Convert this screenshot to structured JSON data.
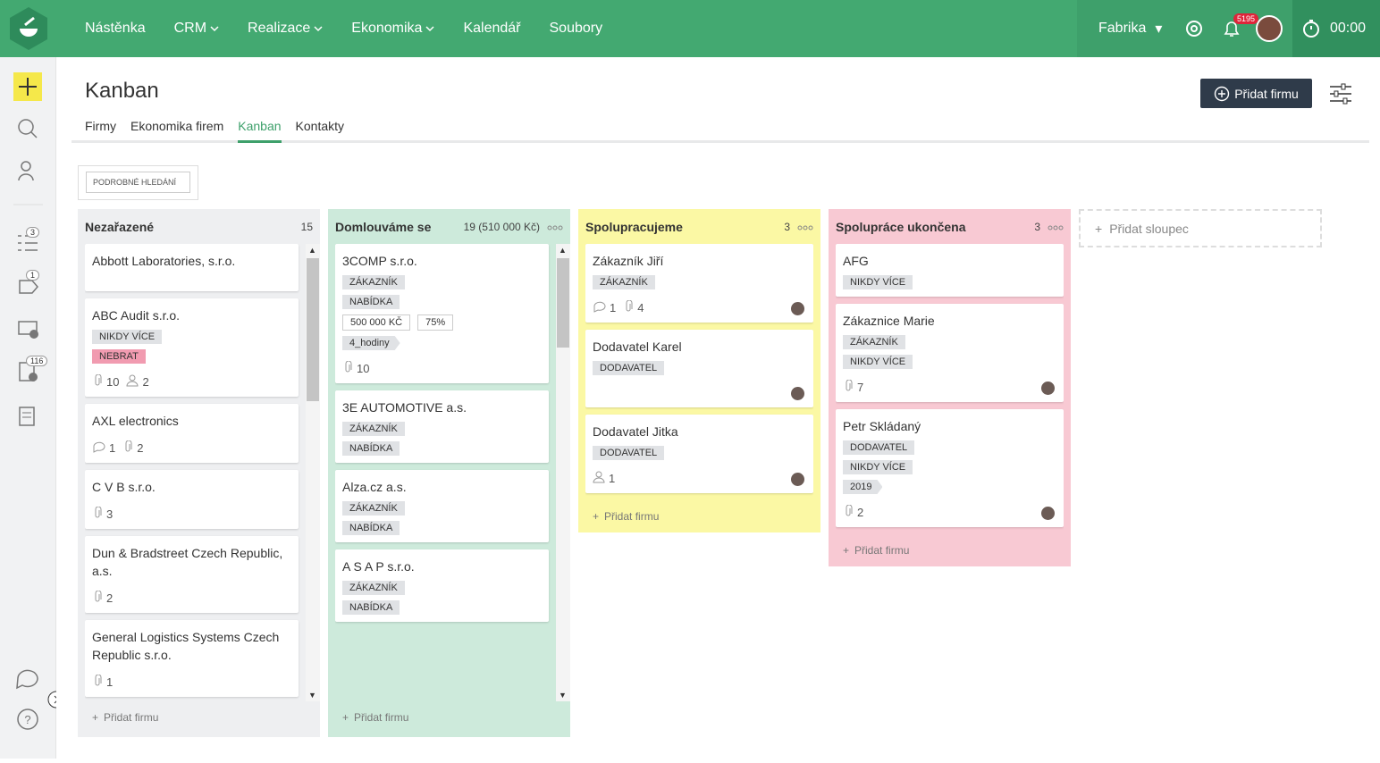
{
  "nav": {
    "items": [
      {
        "label": "Nástěnka",
        "dropdown": false
      },
      {
        "label": "CRM",
        "dropdown": true
      },
      {
        "label": "Realizace",
        "dropdown": true
      },
      {
        "label": "Ekonomika",
        "dropdown": true
      },
      {
        "label": "Kalendář",
        "dropdown": false
      },
      {
        "label": "Soubory",
        "dropdown": false
      }
    ],
    "workspace": "Fabrika",
    "notifications": "5195",
    "timer": "00:00"
  },
  "sidebar": {
    "tasks_badge": "3",
    "messages_badge": "1",
    "documents_badge": "116"
  },
  "page": {
    "title": "Kanban",
    "add_button": "Přidat firmu",
    "tabs": [
      "Firmy",
      "Ekonomika firem",
      "Kanban",
      "Kontakty"
    ],
    "active_tab": 2,
    "search_button": "PODROBNÉ HLEDÁNÍ"
  },
  "board": {
    "add_column": "Přidat sloupec",
    "columns": [
      {
        "title": "Nezařazené",
        "count": "15",
        "color": "#eeeff1",
        "scrollable": true,
        "add_card": "Přidat firmu",
        "cards": [
          {
            "title": "Abbott Laboratories, s.r.o."
          },
          {
            "title": "ABC Audit s.r.o.",
            "tags": [
              "NIKDY VÍCE"
            ],
            "warning_tags": [
              "NEBRAT"
            ],
            "attachments": 10,
            "persons": 2
          },
          {
            "title": "AXL electronics",
            "comments": 1,
            "attachments": 2
          },
          {
            "title": "C V B s.r.o.",
            "attachments": 3
          },
          {
            "title": "Dun & Bradstreet Czech Republic, a.s.",
            "attachments": 2
          },
          {
            "title": "General Logistics Systems Czech Republic s.r.o.",
            "attachments": 1
          }
        ]
      },
      {
        "title": "Domlouváme se",
        "count": "19 (510 000 Kč)",
        "color": "#cdeadb",
        "scrollable": true,
        "add_card": "Přidat firmu",
        "cards": [
          {
            "title": "3COMP s.r.o.",
            "tags": [
              "ZÁKAZNÍK",
              "NABÍDKA"
            ],
            "values": [
              "500 000 KČ",
              "75%"
            ],
            "arrow_tags": [
              "4_hodiny"
            ],
            "attachments": 10
          },
          {
            "title": "3E AUTOMOTIVE a.s.",
            "tags": [
              "ZÁKAZNÍK",
              "NABÍDKA"
            ]
          },
          {
            "title": "Alza.cz a.s.",
            "tags": [
              "ZÁKAZNÍK",
              "NABÍDKA"
            ]
          },
          {
            "title": "A S A P s.r.o.",
            "tags": [
              "ZÁKAZNÍK",
              "NABÍDKA"
            ]
          }
        ]
      },
      {
        "title": "Spolupracujeme",
        "count": "3",
        "color": "#fbf8a4",
        "scrollable": false,
        "add_card": "Přidat firmu",
        "cards": [
          {
            "title": "Zákazník Jiří",
            "tags": [
              "ZÁKAZNÍK"
            ],
            "comments": 1,
            "attachments": 4,
            "avatar": true
          },
          {
            "title": "Dodavatel Karel",
            "tags": [
              "DODAVATEL"
            ],
            "avatar": true
          },
          {
            "title": "Dodavatel Jitka",
            "tags": [
              "DODAVATEL"
            ],
            "persons": 1,
            "avatar": true
          }
        ]
      },
      {
        "title": "Spolupráce ukončena",
        "count": "3",
        "color": "#f8c9d3",
        "scrollable": false,
        "add_card": "Přidat firmu",
        "cards": [
          {
            "title": "AFG",
            "tags": [
              "NIKDY VÍCE"
            ]
          },
          {
            "title": "Zákaznice Marie",
            "tags": [
              "ZÁKAZNÍK",
              "NIKDY VÍCE"
            ],
            "attachments": 7,
            "avatar": true
          },
          {
            "title": "Petr Skládaný",
            "tags": [
              "DODAVATEL",
              "NIKDY VÍCE"
            ],
            "arrow_tags": [
              "2019"
            ],
            "attachments": 2,
            "avatar": true
          }
        ]
      }
    ]
  }
}
